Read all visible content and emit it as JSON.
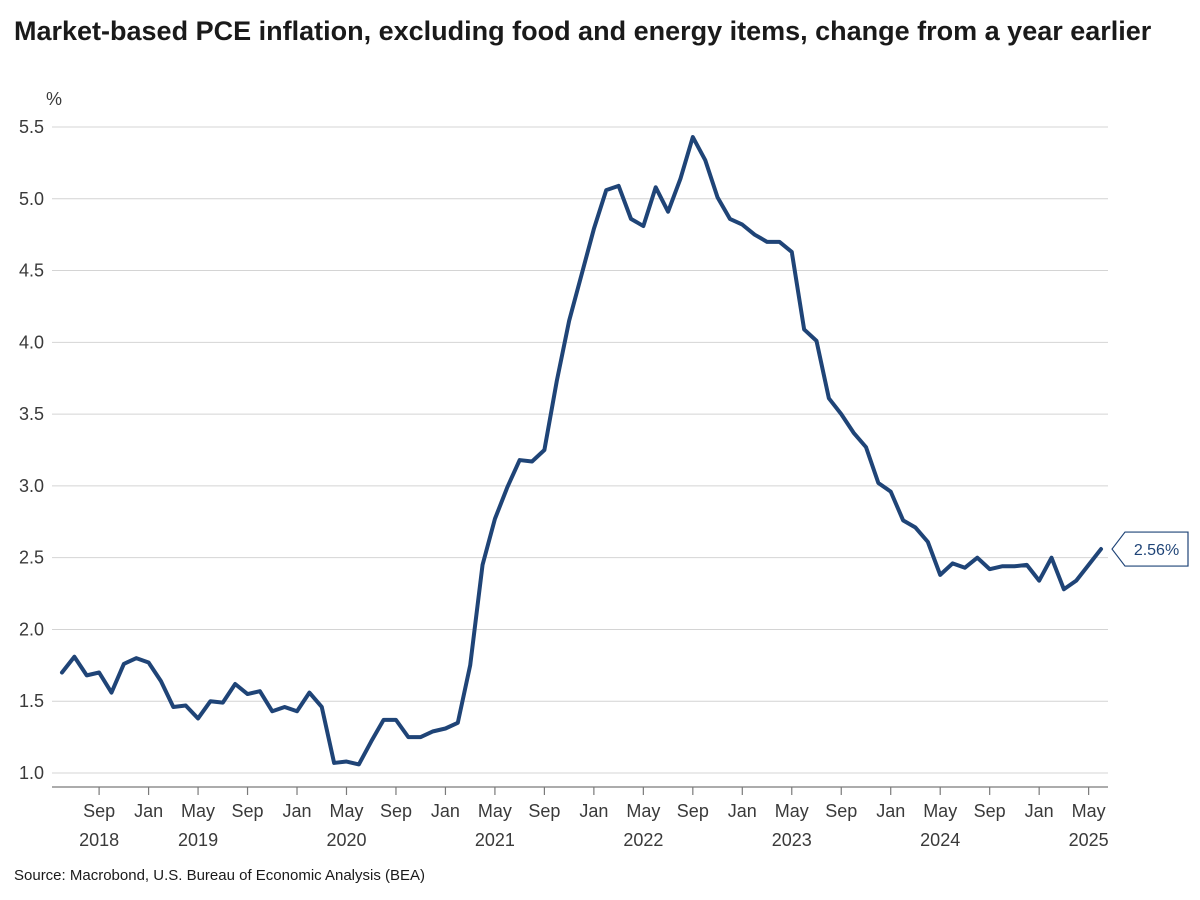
{
  "chart_data": {
    "type": "line",
    "title": "Market-based PCE inflation, excluding food and energy items, change from a year earlier",
    "ylabel": "%",
    "ylim": [
      1.0,
      5.5
    ],
    "yticks": [
      1.0,
      1.5,
      2.0,
      2.5,
      3.0,
      3.5,
      4.0,
      4.5,
      5.0,
      5.5
    ],
    "grid": "horizontal",
    "x_tick_labels": [
      {
        "month": "Sep",
        "year": "2018",
        "x": "2018-09"
      },
      {
        "month": "Jan",
        "year": "",
        "x": "2019-01"
      },
      {
        "month": "May",
        "year": "2019",
        "x": "2019-05"
      },
      {
        "month": "Sep",
        "year": "",
        "x": "2019-09"
      },
      {
        "month": "Jan",
        "year": "",
        "x": "2020-01"
      },
      {
        "month": "May",
        "year": "2020",
        "x": "2020-05"
      },
      {
        "month": "Sep",
        "year": "",
        "x": "2020-09"
      },
      {
        "month": "Jan",
        "year": "",
        "x": "2021-01"
      },
      {
        "month": "May",
        "year": "2021",
        "x": "2021-05"
      },
      {
        "month": "Sep",
        "year": "",
        "x": "2021-09"
      },
      {
        "month": "Jan",
        "year": "",
        "x": "2022-01"
      },
      {
        "month": "May",
        "year": "2022",
        "x": "2022-05"
      },
      {
        "month": "Sep",
        "year": "",
        "x": "2022-09"
      },
      {
        "month": "Jan",
        "year": "",
        "x": "2023-01"
      },
      {
        "month": "May",
        "year": "2023",
        "x": "2023-05"
      },
      {
        "month": "Sep",
        "year": "",
        "x": "2023-09"
      },
      {
        "month": "Jan",
        "year": "",
        "x": "2024-01"
      },
      {
        "month": "May",
        "year": "2024",
        "x": "2024-05"
      },
      {
        "month": "Sep",
        "year": "",
        "x": "2024-09"
      },
      {
        "month": "Jan",
        "year": "",
        "x": "2025-01"
      },
      {
        "month": "May",
        "year": "2025",
        "x": "2025-05"
      }
    ],
    "x_axis_range": [
      "2018-06",
      "2025-07"
    ],
    "series": [
      {
        "color": "#1f4477",
        "start": "2018-06",
        "frequency": "monthly",
        "values": [
          1.7,
          1.81,
          1.68,
          1.7,
          1.56,
          1.76,
          1.8,
          1.77,
          1.64,
          1.46,
          1.47,
          1.38,
          1.5,
          1.49,
          1.62,
          1.55,
          1.57,
          1.43,
          1.46,
          1.43,
          1.56,
          1.46,
          1.07,
          1.08,
          1.06,
          1.22,
          1.37,
          1.37,
          1.25,
          1.25,
          1.29,
          1.31,
          1.35,
          1.75,
          2.45,
          2.77,
          2.99,
          3.18,
          3.17,
          3.25,
          3.73,
          4.15,
          4.47,
          4.79,
          5.06,
          5.09,
          4.86,
          4.81,
          5.08,
          4.91,
          5.14,
          5.43,
          5.27,
          5.01,
          4.86,
          4.82,
          4.75,
          4.7,
          4.7,
          4.63,
          4.09,
          4.01,
          3.61,
          3.5,
          3.37,
          3.27,
          3.02,
          2.96,
          2.76,
          2.71,
          2.61,
          2.38,
          2.46,
          2.43,
          2.5,
          2.42,
          2.44,
          2.44,
          2.45,
          2.34,
          2.5,
          2.28,
          2.34,
          2.45,
          2.56
        ]
      }
    ],
    "last_value_label": "2.56%",
    "source": "Source: Macrobond, U.S. Bureau of Economic Analysis (BEA)"
  }
}
